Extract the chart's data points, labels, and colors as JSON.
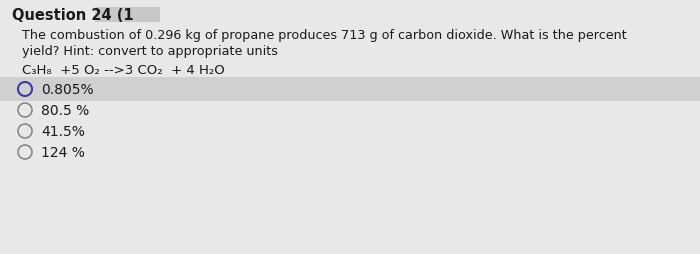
{
  "title": "Question 24 (1",
  "title_cover_color": "#c8c8c8",
  "question_text_line1": "The combustion of 0.296 kg of propane produces 713 g of carbon dioxide. What is the percent",
  "question_text_line2": "yield? Hint: convert to appropriate units",
  "equation": "C₃H₈  +5 O₂ -->3 CO₂  + 4 H₂O",
  "options": [
    "0.805%",
    "80.5 %",
    "41.5%",
    "124 %"
  ],
  "highlighted_option_index": 0,
  "highlight_color": "#d0d0d0",
  "bg_color": "#e8e8e8",
  "text_color": "#1a1a1a",
  "circle_color_0": "#3a3aaa",
  "circle_color_rest": "#888888",
  "title_fontsize": 10.5,
  "option_fontsize": 10,
  "question_fontsize": 9.2,
  "equation_fontsize": 9.5,
  "fig_width": 7.0,
  "fig_height": 2.55,
  "dpi": 100
}
